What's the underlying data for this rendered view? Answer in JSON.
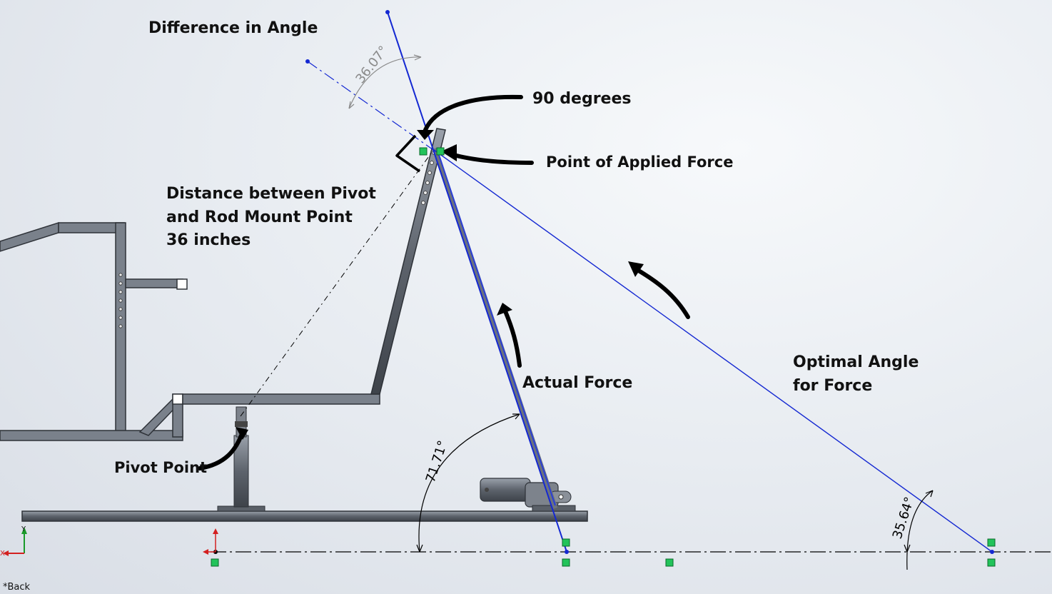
{
  "labels": {
    "difference_in_angle": "Difference in Angle",
    "ninety_degrees": "90 degrees",
    "point_of_applied_force": "Point of Applied Force",
    "distance_line1": "Distance between Pivot",
    "distance_line2": "and Rod Mount Point",
    "distance_line3": "36 inches",
    "actual_force": "Actual Force",
    "optimal_line1": "Optimal Angle",
    "optimal_line2": "for Force",
    "pivot_point": "Pivot Point"
  },
  "dimensions": {
    "difference": "36.07°",
    "actual": "71.71°",
    "optimal": "35.64°"
  },
  "view": {
    "back_label": "*Back",
    "axis_y": "Y",
    "axis_x": "X"
  },
  "colors": {
    "sketch_blue": "#1428d2",
    "frame_grey": "#6d737d",
    "relation_green": "#22c35a",
    "ink": "#000000"
  }
}
